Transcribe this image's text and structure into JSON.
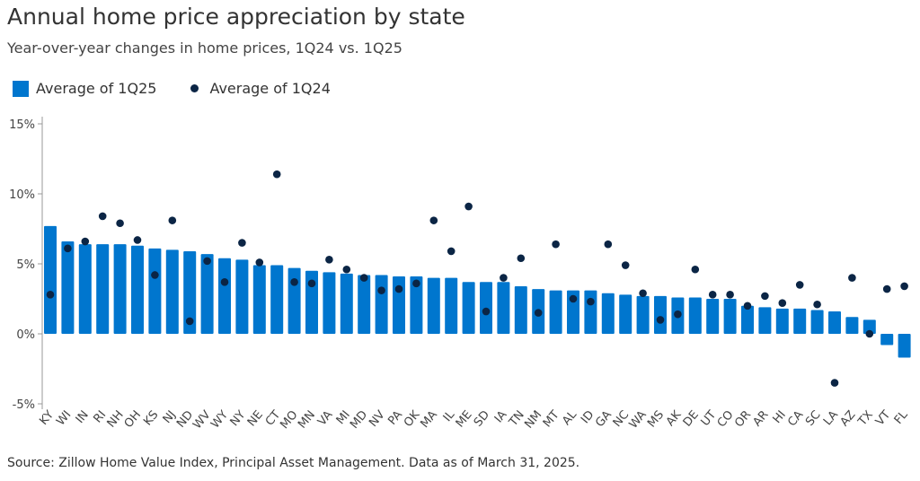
{
  "chart_data": {
    "type": "bar",
    "title": "Annual home price appreciation by state",
    "subtitle": "Year-over-year changes in home prices, 1Q24 vs. 1Q25",
    "source": "Source: Zillow Home Value Index, Principal Asset Management. Data as of March 31, 2025.",
    "ylim": [
      -5,
      15
    ],
    "yticks": [
      15,
      10,
      5,
      0,
      -5
    ],
    "ytick_labels": [
      "15%",
      "10%",
      "5%",
      "0%",
      "-5%"
    ],
    "legend_position": "top-left",
    "categories": [
      "KY",
      "WI",
      "IN",
      "RI",
      "NH",
      "OH",
      "KS",
      "NJ",
      "ND",
      "WV",
      "WY",
      "NY",
      "NE",
      "CT",
      "MO",
      "MN",
      "VA",
      "MI",
      "MD",
      "NV",
      "PA",
      "OK",
      "MA",
      "IL",
      "ME",
      "SD",
      "IA",
      "TN",
      "NM",
      "MT",
      "AL",
      "ID",
      "GA",
      "NC",
      "WA",
      "MS",
      "AK",
      "DE",
      "UT",
      "CO",
      "OR",
      "AR",
      "HI",
      "CA",
      "SC",
      "LA",
      "AZ",
      "TX",
      "VT",
      "FL"
    ],
    "series": [
      {
        "name": "Average of 1Q25",
        "type": "bar",
        "color": "#0076CE",
        "values": [
          7.7,
          6.6,
          6.4,
          6.4,
          6.4,
          6.3,
          6.1,
          6.0,
          5.9,
          5.7,
          5.4,
          5.3,
          4.9,
          4.9,
          4.7,
          4.5,
          4.4,
          4.3,
          4.2,
          4.2,
          4.1,
          4.1,
          4.0,
          4.0,
          3.7,
          3.7,
          3.7,
          3.4,
          3.2,
          3.1,
          3.1,
          3.1,
          2.9,
          2.8,
          2.7,
          2.7,
          2.6,
          2.6,
          2.5,
          2.5,
          2.0,
          1.9,
          1.8,
          1.8,
          1.7,
          1.6,
          1.2,
          1.0,
          -0.8,
          -1.7
        ]
      },
      {
        "name": "Average of 1Q24",
        "type": "scatter",
        "color": "#0B2545",
        "values": [
          2.8,
          6.1,
          6.6,
          8.4,
          7.9,
          6.7,
          4.2,
          8.1,
          0.9,
          5.2,
          3.7,
          6.5,
          5.1,
          11.4,
          3.7,
          3.6,
          5.3,
          4.6,
          4.0,
          3.1,
          3.2,
          3.6,
          8.1,
          5.9,
          9.1,
          1.6,
          4.0,
          5.4,
          1.5,
          6.4,
          2.5,
          2.3,
          6.4,
          4.9,
          2.9,
          1.0,
          1.4,
          4.6,
          2.8,
          2.8,
          2.0,
          2.7,
          2.2,
          3.5,
          2.1,
          -3.5,
          4.0,
          0.0,
          3.2,
          3.4
        ]
      }
    ]
  }
}
